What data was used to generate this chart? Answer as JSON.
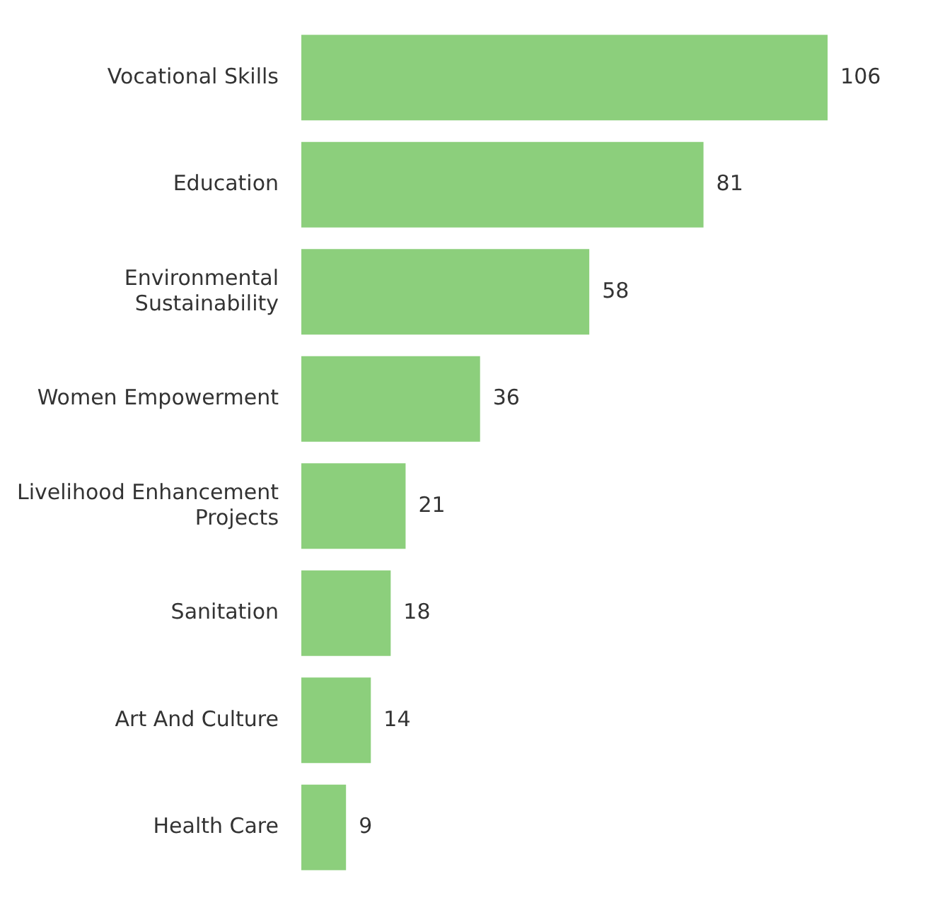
{
  "chart_data": {
    "type": "bar",
    "orientation": "horizontal",
    "categories": [
      "Vocational Skills",
      "Education",
      "Environmental Sustainability",
      "Women Empowerment",
      "Livelihood Enhancement Projects",
      "Sanitation",
      "Art And Culture",
      "Health Care"
    ],
    "values": [
      106,
      81,
      58,
      36,
      21,
      18,
      14,
      9
    ],
    "color": "#8ccf7c",
    "data_labels": true
  }
}
